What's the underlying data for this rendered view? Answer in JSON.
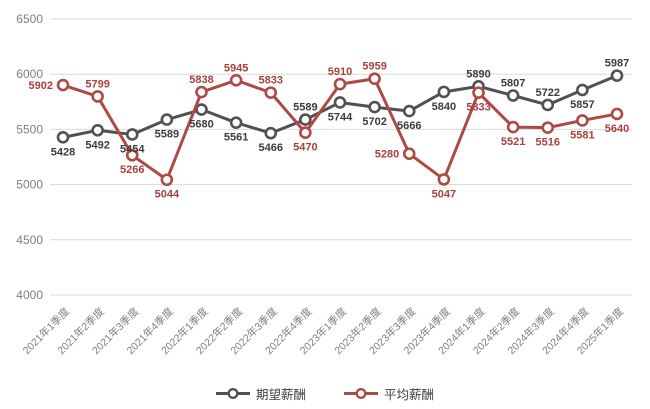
{
  "chart_data": {
    "type": "line",
    "title": "",
    "xlabel": "",
    "ylabel": "",
    "categories": [
      "2021年1季度",
      "2021年2季度",
      "2021年3季度",
      "2021年4季度",
      "2022年1季度",
      "2022年2季度",
      "2022年3季度",
      "2022年4季度",
      "2023年1季度",
      "2023年2季度",
      "2023年3季度",
      "2023年4季度",
      "2024年1季度",
      "2024年2季度",
      "2024年3季度",
      "2024年4季度",
      "2025年1季度"
    ],
    "series": [
      {
        "key": "expected-salary",
        "name": "期望薪酬",
        "color": "#515151",
        "label_color": "#3C3C3C",
        "values": [
          5428,
          5492,
          5454,
          5589,
          5680,
          5561,
          5466,
          5589,
          5744,
          5702,
          5666,
          5840,
          5890,
          5807,
          5722,
          5857,
          5987
        ],
        "label_pos": [
          "below",
          "below",
          "below",
          "below",
          "below",
          "below",
          "below",
          "above",
          "below",
          "below",
          "below",
          "below",
          "above",
          "above",
          "above",
          "below",
          "above"
        ]
      },
      {
        "key": "average-salary",
        "name": "平均薪酬",
        "color": "#AE4A45",
        "label_color": "#A5423E",
        "values": [
          5902,
          5799,
          5266,
          5044,
          5838,
          5945,
          5833,
          5470,
          5910,
          5959,
          5280,
          5047,
          5833,
          5521,
          5516,
          5581,
          5640
        ],
        "label_pos": [
          "left",
          "above",
          "below",
          "below",
          "above",
          "above",
          "above",
          "below",
          "above",
          "above",
          "left",
          "below",
          "below",
          "below",
          "below",
          "below",
          "below"
        ]
      }
    ],
    "ylim": [
      4000,
      6500
    ],
    "yticks": [
      6500,
      6000,
      5500,
      5000,
      4500,
      4000
    ],
    "grid": "horizontal",
    "grid_color": "#D9D9D9",
    "axis_label_color": "#7F7F7F",
    "marker": "circle",
    "marker_fill": "#FFFFFF",
    "legend_position": "bottom-center"
  }
}
